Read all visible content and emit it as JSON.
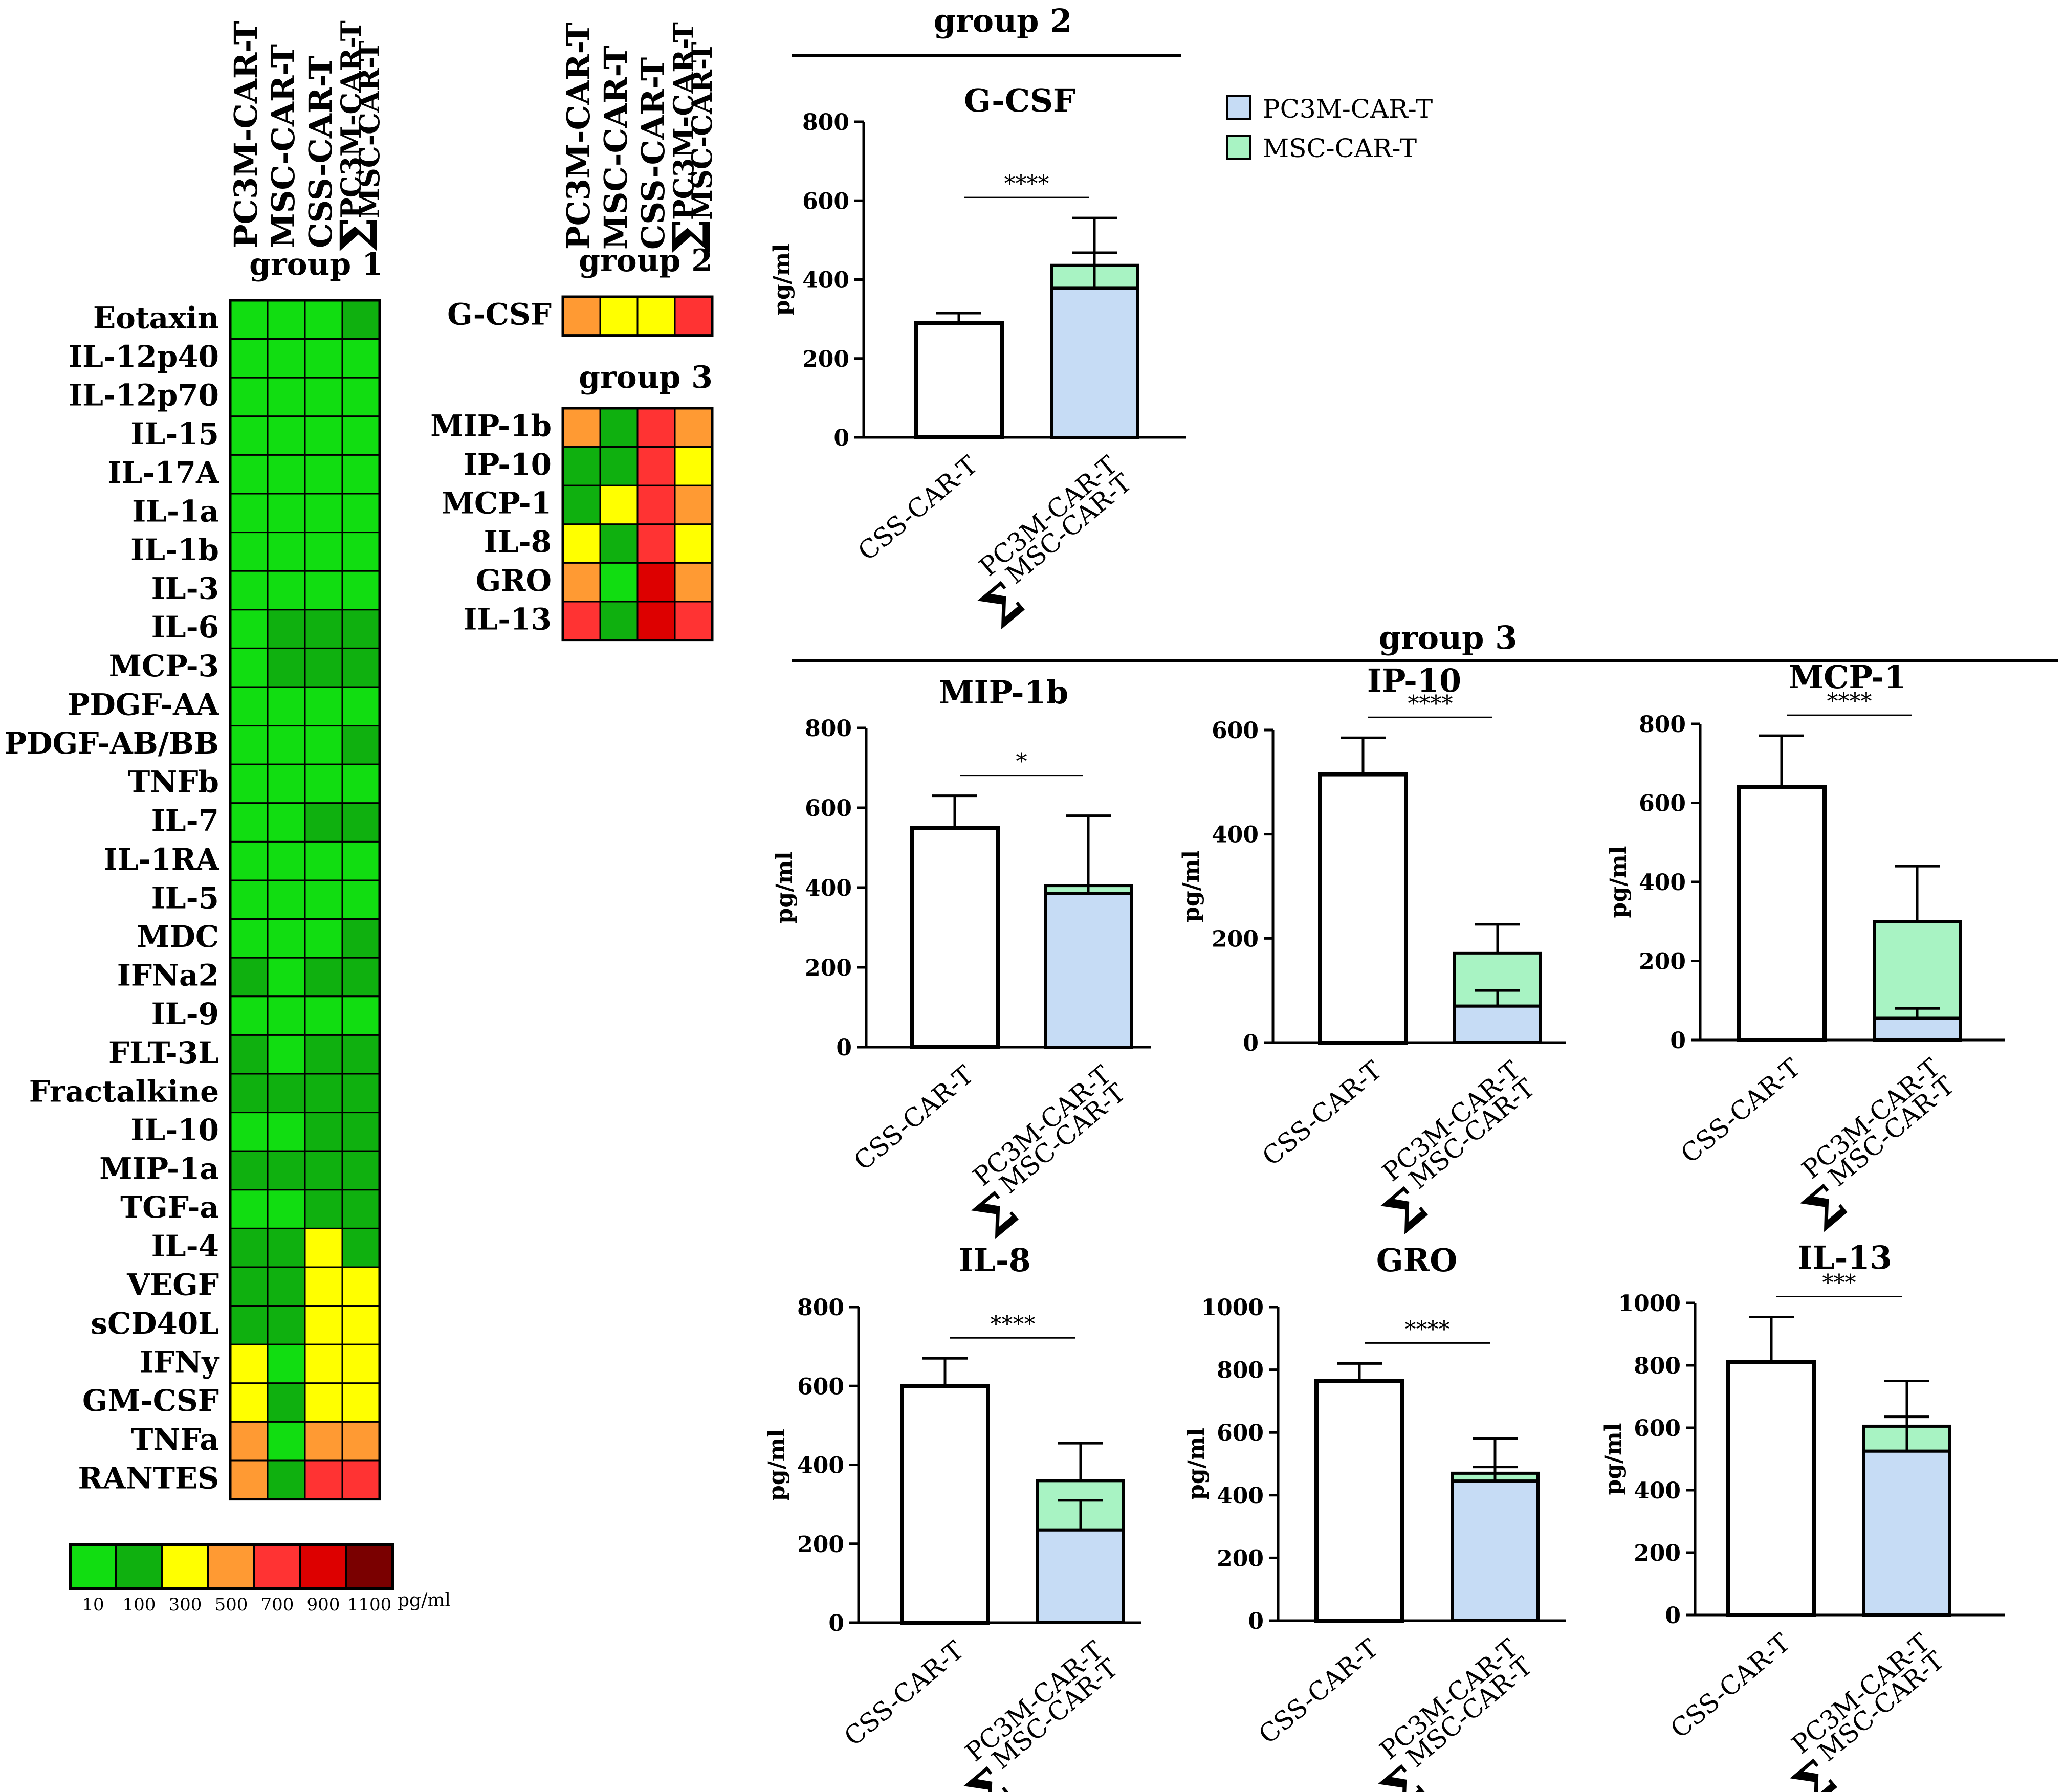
{
  "colors": {
    "pc3m_fill": "#c6dcf5",
    "msc_fill": "#a8f3c3",
    "css_fill": "#ffffff",
    "axis": "#000000",
    "heat_scale": [
      "#11dd11",
      "#0fb00f",
      "#ffff00",
      "#ff9a33",
      "#ff3333",
      "#dd0000",
      "#7a0000"
    ]
  },
  "legend": {
    "pc3m_label": "PC3M-CAR-T",
    "msc_label": "MSC-CAR-T"
  },
  "columns": [
    "PC3M-CAR-T",
    "MSC-CAR-T",
    "CSS-CAR-T",
    "PC3M-CAR-T",
    "MSC-CAR-T"
  ],
  "sigma": "Σ",
  "scale": {
    "ticks": [
      "10",
      "100",
      "300",
      "500",
      "700",
      "900",
      "1100"
    ],
    "unit": "pg/ml"
  },
  "chart_data": [
    {
      "type": "heatmap",
      "title": "group 1",
      "columns": [
        "PC3M-CAR-T",
        "MSC-CAR-T",
        "CSS-CAR-T",
        "ΣPC3M-CAR-T MSC-CAR-T"
      ],
      "rows": [
        {
          "name": "Eotaxin",
          "levels": [
            0,
            0,
            0,
            1
          ]
        },
        {
          "name": "IL-12p40",
          "levels": [
            0,
            0,
            0,
            0
          ]
        },
        {
          "name": "IL-12p70",
          "levels": [
            0,
            0,
            0,
            0
          ]
        },
        {
          "name": "IL-15",
          "levels": [
            0,
            0,
            0,
            0
          ]
        },
        {
          "name": "IL-17A",
          "levels": [
            0,
            0,
            0,
            0
          ]
        },
        {
          "name": "IL-1a",
          "levels": [
            0,
            0,
            0,
            0
          ]
        },
        {
          "name": "IL-1b",
          "levels": [
            0,
            0,
            0,
            0
          ]
        },
        {
          "name": "IL-3",
          "levels": [
            0,
            0,
            0,
            0
          ]
        },
        {
          "name": "IL-6",
          "levels": [
            0,
            1,
            1,
            1
          ]
        },
        {
          "name": "MCP-3",
          "levels": [
            0,
            1,
            1,
            1
          ]
        },
        {
          "name": "PDGF-AA",
          "levels": [
            0,
            0,
            0,
            0
          ]
        },
        {
          "name": "PDGF-AB/BB",
          "levels": [
            0,
            0,
            0,
            1
          ]
        },
        {
          "name": "TNFb",
          "levels": [
            0,
            0,
            0,
            0
          ]
        },
        {
          "name": "IL-7",
          "levels": [
            0,
            0,
            1,
            1
          ]
        },
        {
          "name": "IL-1RA",
          "levels": [
            0,
            0,
            0,
            0
          ]
        },
        {
          "name": "IL-5",
          "levels": [
            0,
            0,
            0,
            0
          ]
        },
        {
          "name": "MDC",
          "levels": [
            0,
            0,
            0,
            1
          ]
        },
        {
          "name": "IFNa2",
          "levels": [
            1,
            0,
            1,
            1
          ]
        },
        {
          "name": "IL-9",
          "levels": [
            0,
            0,
            0,
            0
          ]
        },
        {
          "name": "FLT-3L",
          "levels": [
            1,
            0,
            1,
            1
          ]
        },
        {
          "name": "Fractalkine",
          "levels": [
            1,
            1,
            1,
            1
          ]
        },
        {
          "name": "IL-10",
          "levels": [
            0,
            0,
            1,
            1
          ]
        },
        {
          "name": "MIP-1a",
          "levels": [
            1,
            1,
            1,
            1
          ]
        },
        {
          "name": "TGF-a",
          "levels": [
            0,
            0,
            1,
            1
          ]
        },
        {
          "name": "IL-4",
          "levels": [
            1,
            1,
            2,
            1
          ]
        },
        {
          "name": "VEGF",
          "levels": [
            1,
            1,
            2,
            2
          ]
        },
        {
          "name": "sCD40L",
          "levels": [
            1,
            1,
            2,
            2
          ]
        },
        {
          "name": "IFNy",
          "levels": [
            2,
            0,
            2,
            2
          ]
        },
        {
          "name": "GM-CSF",
          "levels": [
            2,
            1,
            2,
            2
          ]
        },
        {
          "name": "TNFa",
          "levels": [
            3,
            0,
            3,
            3
          ]
        },
        {
          "name": "RANTES",
          "levels": [
            3,
            1,
            4,
            4
          ]
        }
      ]
    },
    {
      "type": "heatmap",
      "title": "group 2",
      "columns": [
        "PC3M-CAR-T",
        "MSC-CAR-T",
        "CSS-CAR-T",
        "ΣPC3M-CAR-T MSC-CAR-T"
      ],
      "rows": [
        {
          "name": "G-CSF",
          "levels": [
            3,
            2,
            2,
            4
          ]
        }
      ]
    },
    {
      "type": "heatmap",
      "title": "group 3",
      "columns": [
        "PC3M-CAR-T",
        "MSC-CAR-T",
        "CSS-CAR-T",
        "ΣPC3M-CAR-T MSC-CAR-T"
      ],
      "rows": [
        {
          "name": "MIP-1b",
          "levels": [
            3,
            1,
            4,
            3
          ]
        },
        {
          "name": "IP-10",
          "levels": [
            1,
            1,
            4,
            2
          ]
        },
        {
          "name": "MCP-1",
          "levels": [
            1,
            2,
            4,
            3
          ]
        },
        {
          "name": "IL-8",
          "levels": [
            2,
            1,
            4,
            2
          ]
        },
        {
          "name": "GRO",
          "levels": [
            3,
            0,
            5,
            3
          ]
        },
        {
          "name": "IL-13",
          "levels": [
            4,
            1,
            5,
            4
          ]
        }
      ]
    },
    {
      "type": "bar",
      "id": "gcsf",
      "section": "group 2",
      "title": "G-CSF",
      "ylabel": "pg/ml",
      "ylim": [
        0,
        800
      ],
      "yticks": [
        "0",
        "200",
        "400",
        "600",
        "800"
      ],
      "categories": [
        "CSS-CAR-T",
        "PC3M-CAR-T MSC-CAR-T"
      ],
      "css": {
        "value": 290,
        "err": 25
      },
      "stack": {
        "pc3m": 378,
        "pc3m_err": 90,
        "msc": 58,
        "total_err": 120
      },
      "significance": "****"
    },
    {
      "type": "bar",
      "id": "mip1b",
      "section": "group 3",
      "title": "MIP-1b",
      "ylabel": "pg/ml",
      "ylim": [
        0,
        800
      ],
      "yticks": [
        "0",
        "200",
        "400",
        "600",
        "800"
      ],
      "categories": [
        "CSS-CAR-T",
        "PC3M-CAR-T MSC-CAR-T"
      ],
      "css": {
        "value": 550,
        "err": 80
      },
      "stack": {
        "pc3m": 385,
        "pc3m_err": 20,
        "msc": 20,
        "total_err": 175
      },
      "significance": "*"
    },
    {
      "type": "bar",
      "id": "ip10",
      "section": "group 3",
      "title": "IP-10",
      "ylabel": "pg/ml",
      "ylim": [
        0,
        600
      ],
      "yticks": [
        "0",
        "200",
        "400",
        "600"
      ],
      "categories": [
        "CSS-CAR-T",
        "PC3M-CAR-T MSC-CAR-T"
      ],
      "css": {
        "value": 515,
        "err": 70
      },
      "stack": {
        "pc3m": 70,
        "pc3m_err": 30,
        "msc": 102,
        "total_err": 55
      },
      "significance": "****"
    },
    {
      "type": "bar",
      "id": "mcp1",
      "section": "group 3",
      "title": "MCP-1",
      "ylabel": "pg/ml",
      "ylim": [
        0,
        800
      ],
      "yticks": [
        "0",
        "200",
        "400",
        "600",
        "800"
      ],
      "categories": [
        "CSS-CAR-T",
        "PC3M-CAR-T MSC-CAR-T"
      ],
      "css": {
        "value": 640,
        "err": 130
      },
      "stack": {
        "pc3m": 55,
        "pc3m_err": 25,
        "msc": 245,
        "total_err": 140
      },
      "significance": "****"
    },
    {
      "type": "bar",
      "id": "il8",
      "section": "group 3",
      "title": "IL-8",
      "ylabel": "pg/ml",
      "ylim": [
        0,
        800
      ],
      "yticks": [
        "0",
        "200",
        "400",
        "600",
        "800"
      ],
      "categories": [
        "CSS-CAR-T",
        "PC3M-CAR-T MSC-CAR-T"
      ],
      "css": {
        "value": 600,
        "err": 70
      },
      "stack": {
        "pc3m": 235,
        "pc3m_err": 75,
        "msc": 125,
        "total_err": 95
      },
      "significance": "****"
    },
    {
      "type": "bar",
      "id": "gro",
      "section": "group 3",
      "title": "GRO",
      "ylabel": "pg/ml",
      "ylim": [
        0,
        1000
      ],
      "yticks": [
        "0",
        "200",
        "400",
        "600",
        "800",
        "1000"
      ],
      "categories": [
        "CSS-CAR-T",
        "PC3M-CAR-T MSC-CAR-T"
      ],
      "css": {
        "value": 765,
        "err": 55
      },
      "stack": {
        "pc3m": 445,
        "pc3m_err": 45,
        "msc": 25,
        "total_err": 110
      },
      "significance": "****"
    },
    {
      "type": "bar",
      "id": "il13",
      "section": "group 3",
      "title": "IL-13",
      "ylabel": "pg/ml",
      "ylim": [
        0,
        1000
      ],
      "yticks": [
        "0",
        "200",
        "400",
        "600",
        "800",
        "1000"
      ],
      "categories": [
        "CSS-CAR-T",
        "PC3M-CAR-T MSC-CAR-T"
      ],
      "css": {
        "value": 810,
        "err": 145
      },
      "stack": {
        "pc3m": 525,
        "pc3m_err": 110,
        "msc": 80,
        "total_err": 145
      },
      "significance": "***"
    }
  ]
}
